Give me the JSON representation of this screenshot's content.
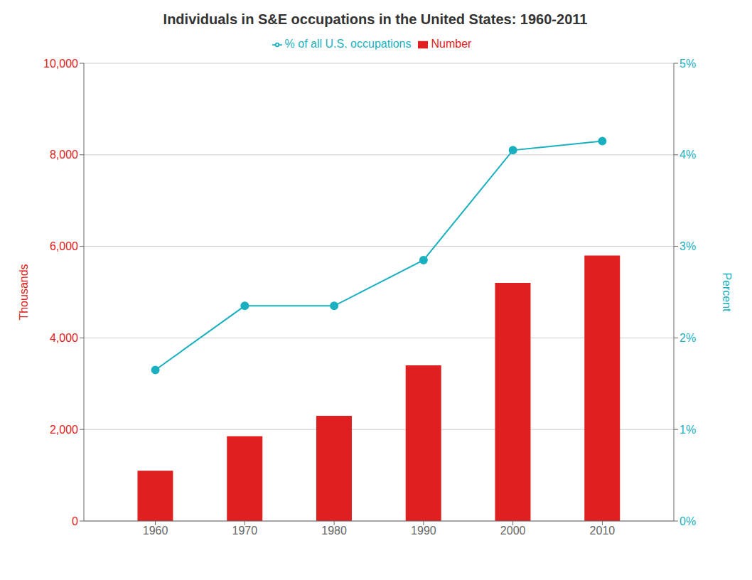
{
  "chart_data": {
    "type": "bar",
    "title": "Individuals in S&E occupations in the United States: 1960-2011",
    "x": [
      1960,
      1970,
      1980,
      1990,
      2000,
      2010
    ],
    "xlim": [
      1952,
      2018
    ],
    "xticks": [
      1960,
      1970,
      1980,
      1990,
      2000,
      2010
    ],
    "ylabel": "Thousands",
    "y2label": "Percent",
    "ylim": [
      0,
      10000
    ],
    "yticks": [
      0,
      {
        "value": 2000,
        "label": "2,000"
      },
      {
        "value": 4000,
        "label": "4,000"
      },
      {
        "value": 6000,
        "label": "6,000"
      },
      {
        "value": 8000,
        "label": "8,000"
      },
      {
        "value": 10000,
        "label": "10,000"
      }
    ],
    "y2lim": [
      0,
      5
    ],
    "y2ticks": [
      {
        "value": 0,
        "label": "0%"
      },
      {
        "value": 1,
        "label": "1%"
      },
      {
        "value": 2,
        "label": "2%"
      },
      {
        "value": 3,
        "label": "3%"
      },
      {
        "value": 4,
        "label": "4%"
      },
      {
        "value": 5,
        "label": "5%"
      }
    ],
    "grid": true,
    "legend": "top",
    "series": [
      {
        "name": "Number",
        "type": "bar",
        "color": "#e02020",
        "values": [
          1100,
          1850,
          2300,
          3400,
          5200,
          5800
        ]
      },
      {
        "name": "% of all U.S. occupations",
        "type": "line",
        "axis": "y2",
        "color": "#1ab0c0",
        "marker": "circle",
        "values": [
          1.65,
          2.35,
          2.35,
          2.85,
          4.05,
          4.15
        ]
      }
    ]
  }
}
